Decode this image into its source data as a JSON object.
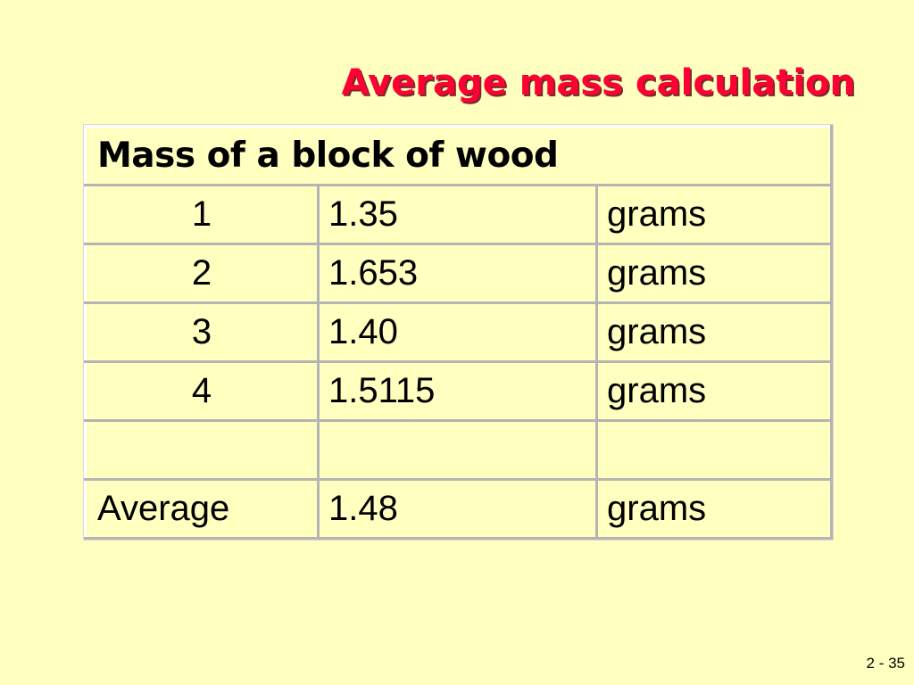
{
  "slide": {
    "title": "Average mass calculation",
    "page_number": "2 - 35"
  },
  "table": {
    "header": "Mass of a block of wood",
    "rows": [
      {
        "trial": "1",
        "mass": "1.35",
        "unit": "grams"
      },
      {
        "trial": "2",
        "mass": "1.653",
        "unit": "grams"
      },
      {
        "trial": "3",
        "mass": "1.40",
        "unit": "grams"
      },
      {
        "trial": "4",
        "mass": "1.5115",
        "unit": "grams"
      },
      {
        "trial": "",
        "mass": "",
        "unit": ""
      }
    ],
    "average": {
      "label": "Average",
      "mass": "1.48",
      "unit": "grams"
    }
  },
  "colors": {
    "background": "#ffffc0",
    "title": "#ff0033",
    "title_shadow": "#7a2a2a",
    "cell_border_light": "#ffffff",
    "cell_border_dark": "#b4b4b4"
  }
}
